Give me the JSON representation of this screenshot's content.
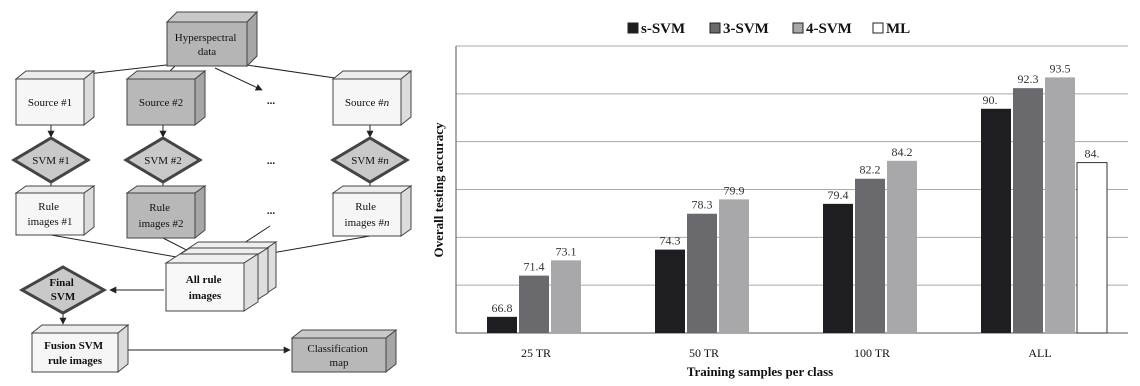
{
  "flowchart": {
    "root_label": [
      "Hyperspectral",
      "data"
    ],
    "sources": [
      {
        "prefix": "Source #",
        "suffix": "1",
        "italic": false
      },
      {
        "prefix": "Source #",
        "suffix": "2",
        "italic": false
      },
      {
        "prefix": "Source #",
        "suffix": "n",
        "italic": true
      }
    ],
    "svms": [
      {
        "prefix": "SVM #",
        "suffix": "1",
        "italic": false
      },
      {
        "prefix": "SVM #",
        "suffix": "2",
        "italic": false
      },
      {
        "prefix": "SVM #",
        "suffix": "n",
        "italic": true
      }
    ],
    "rules": [
      {
        "line1": "Rule",
        "prefix": "images #",
        "suffix": "1",
        "italic": false
      },
      {
        "line1": "Rule",
        "prefix": "images #",
        "suffix": "2",
        "italic": false
      },
      {
        "line1": "Rule",
        "prefix": "images #",
        "suffix": "n",
        "italic": true
      }
    ],
    "ellipsis": "...",
    "all_rule": [
      "All rule",
      "images"
    ],
    "final_svm": [
      "Final",
      "SVM"
    ],
    "fusion": [
      "Fusion SVM",
      "rule images"
    ],
    "classification": [
      "Classification",
      "map"
    ],
    "colors": {
      "shaded": "#b5b5b5",
      "light": "#f5f5f5",
      "diamond_fill": "#c9c9c9",
      "diamond_stroke": "#444444"
    }
  },
  "chart_data": {
    "type": "bar",
    "categories": [
      "25 TR",
      "50 TR",
      "100 TR",
      "ALL"
    ],
    "series": [
      {
        "name": "s-SVM",
        "color": "#1e1e22",
        "values": [
          66.8,
          74.3,
          79.4,
          90.0
        ],
        "labels": [
          "66.8",
          "74.3",
          "79.4",
          "90."
        ]
      },
      {
        "name": "3-SVM",
        "color": "#6a6a6e",
        "values": [
          71.4,
          78.3,
          82.2,
          92.3
        ],
        "labels": [
          "71.4",
          "78.3",
          "82.2",
          "92.3"
        ]
      },
      {
        "name": "4-SVM",
        "color": "#a8a8aa",
        "values": [
          73.1,
          79.9,
          84.2,
          93.5
        ],
        "labels": [
          "73.1",
          "79.9",
          "84.2",
          "93.5"
        ]
      },
      {
        "name": "ML",
        "color": "#ffffff",
        "values": [
          null,
          null,
          null,
          84.0
        ],
        "labels": [
          null,
          null,
          null,
          "84."
        ]
      }
    ],
    "legend": [
      "s-SVM",
      "3-SVM",
      "4-SVM",
      "ML"
    ],
    "legend_position": "top",
    "xlabel": "Training samples per class",
    "ylabel": "Overall testing accuracy",
    "ylim": [
      65,
      97
    ],
    "grid": true
  }
}
